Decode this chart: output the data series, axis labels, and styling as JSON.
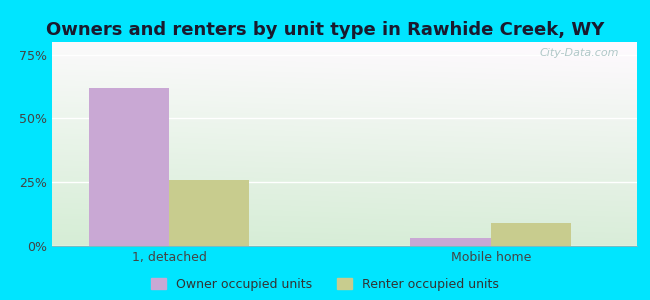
{
  "title": "Owners and renters by unit type in Rawhide Creek, WY",
  "categories": [
    "1, detached",
    "Mobile home"
  ],
  "owner_values": [
    62,
    3
  ],
  "renter_values": [
    26,
    9
  ],
  "owner_color": "#c9a8d4",
  "renter_color": "#c8cc8e",
  "background_color": "#00e5ff",
  "yticks": [
    0,
    25,
    50,
    75
  ],
  "ylim": [
    0,
    80
  ],
  "bar_width": 0.55,
  "legend_owner": "Owner occupied units",
  "legend_renter": "Renter occupied units",
  "watermark": "City-Data.com",
  "title_fontsize": 13,
  "tick_fontsize": 9,
  "group_positions": [
    1.0,
    3.2
  ],
  "xlim": [
    0.2,
    4.2
  ]
}
